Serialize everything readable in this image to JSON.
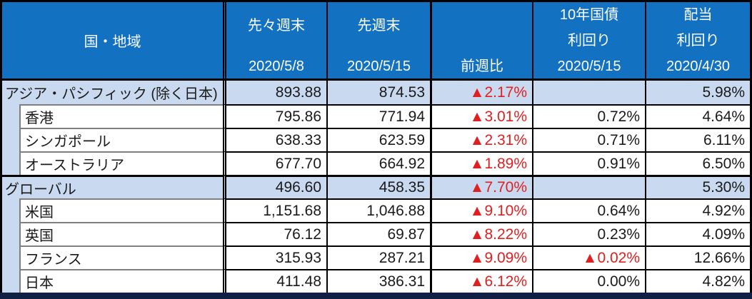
{
  "chart_data": {
    "type": "table",
    "header": {
      "country": "国・地域",
      "prev2_label": "先々週末",
      "prev2_date": "2020/5/8",
      "prev1_label": "先週末",
      "prev1_date": "2020/5/15",
      "wow_label": "前週比",
      "bond_label_1": "10年国債",
      "bond_label_2": "利回り",
      "bond_date": "2020/5/15",
      "dividend_label_1": "配当",
      "dividend_label_2": "利回り",
      "dividend_date": "2020/4/30"
    },
    "rows": [
      {
        "label": "アジア・パシフィック (除く日本)",
        "level": "group",
        "prev2": "893.88",
        "prev1": "874.53",
        "wow": "▲2.17%",
        "bond10y": "",
        "dividend": "5.98%"
      },
      {
        "label": "香港",
        "level": "sub",
        "prev2": "795.86",
        "prev1": "771.94",
        "wow": "▲3.01%",
        "bond10y": "0.72%",
        "dividend": "4.64%"
      },
      {
        "label": "シンガポール",
        "level": "sub",
        "prev2": "638.33",
        "prev1": "623.59",
        "wow": "▲2.31%",
        "bond10y": "0.71%",
        "dividend": "6.11%"
      },
      {
        "label": "オーストラリア",
        "level": "sub",
        "prev2": "677.70",
        "prev1": "664.92",
        "wow": "▲1.89%",
        "bond10y": "0.91%",
        "dividend": "6.50%"
      },
      {
        "label": "グローバル",
        "level": "group",
        "prev2": "496.60",
        "prev1": "458.35",
        "wow": "▲7.70%",
        "bond10y": "",
        "dividend": "5.30%"
      },
      {
        "label": "米国",
        "level": "sub",
        "prev2": "1,151.68",
        "prev1": "1,046.88",
        "wow": "▲9.10%",
        "bond10y": "0.64%",
        "dividend": "4.92%"
      },
      {
        "label": "英国",
        "level": "sub",
        "prev2": "76.12",
        "prev1": "69.87",
        "wow": "▲8.22%",
        "bond10y": "0.23%",
        "dividend": "4.09%"
      },
      {
        "label": "フランス",
        "level": "sub",
        "prev2": "315.93",
        "prev1": "287.21",
        "wow": "▲9.09%",
        "bond10y": "▲0.02%",
        "dividend": "12.66%"
      },
      {
        "label": "日本",
        "level": "sub",
        "prev2": "411.48",
        "prev1": "386.31",
        "wow": "▲6.12%",
        "bond10y": "0.00%",
        "dividend": "4.82%"
      }
    ],
    "layout": {
      "columns": [
        "国・地域",
        "先々週末 2020/5/8",
        "先週末 2020/5/15",
        "前週比",
        "10年国債利回り 2020/5/15",
        "配当利回り 2020/4/30"
      ],
      "grid": "bordered table",
      "legend_position": "none"
    }
  },
  "colors": {
    "header_bg": "#1271C1",
    "header_text": "#FFFFFF",
    "group_row_bg": "#C9DAF0",
    "negative_text": "#E02020",
    "bottom_bar": "#101F44",
    "border": "#000000",
    "sub_box_border": "#7F7F7F"
  }
}
